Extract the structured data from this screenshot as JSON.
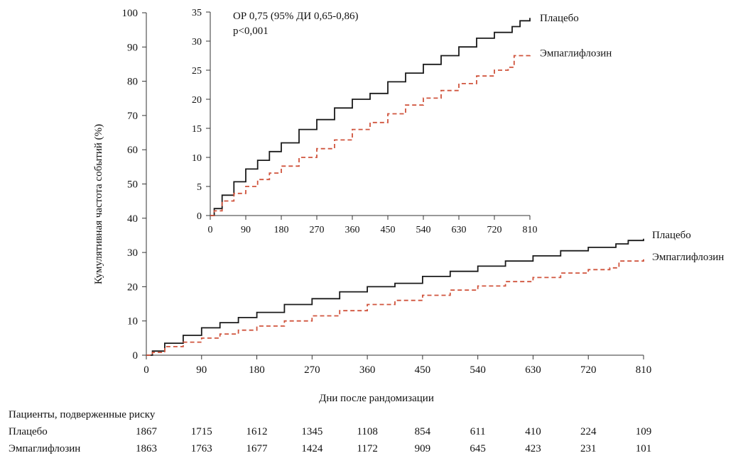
{
  "chart_data": [
    {
      "id": "main",
      "type": "line",
      "ylabel": "Кумулятивная частота событий (%)",
      "xlabel": "Дни после рандомизации",
      "ylim": [
        0,
        100
      ],
      "xlim": [
        0,
        810
      ],
      "y_ticks": [
        0,
        10,
        20,
        30,
        40,
        50,
        60,
        70,
        80,
        90,
        100
      ],
      "x_ticks": [
        0,
        90,
        180,
        270,
        360,
        450,
        540,
        630,
        720,
        810
      ],
      "series": [
        {
          "name": "Плацебо",
          "color": "#1a1a1a",
          "style": "solid",
          "x": [
            0,
            10,
            30,
            60,
            90,
            120,
            150,
            180,
            225,
            270,
            315,
            360,
            405,
            450,
            495,
            540,
            585,
            630,
            675,
            720,
            765,
            785,
            810
          ],
          "y": [
            0,
            1.2,
            3.5,
            5.8,
            8.0,
            9.5,
            11.0,
            12.5,
            14.8,
            16.5,
            18.5,
            20.0,
            21.0,
            23.0,
            24.5,
            26.0,
            27.5,
            29.0,
            30.5,
            31.5,
            32.5,
            33.5,
            34.0
          ]
        },
        {
          "name": "Эмпаглифлозин",
          "color": "#d0543d",
          "style": "dashed",
          "x": [
            0,
            10,
            30,
            60,
            90,
            120,
            150,
            180,
            225,
            270,
            315,
            360,
            405,
            450,
            495,
            540,
            585,
            630,
            675,
            720,
            755,
            770,
            810
          ],
          "y": [
            0,
            0.8,
            2.5,
            3.8,
            5.0,
            6.2,
            7.3,
            8.5,
            10.0,
            11.5,
            13.0,
            14.8,
            16.0,
            17.5,
            19.0,
            20.2,
            21.5,
            22.7,
            24.0,
            25.0,
            25.5,
            27.5,
            28.0
          ]
        }
      ],
      "legend": [
        "Плацебо",
        "Эмпаглифлозин"
      ],
      "legend_placement": "right, at line ends"
    },
    {
      "id": "inset",
      "type": "line",
      "ylim": [
        0,
        35
      ],
      "xlim": [
        0,
        810
      ],
      "y_ticks": [
        0,
        5,
        10,
        15,
        20,
        25,
        30,
        35
      ],
      "x_ticks": [
        0,
        90,
        180,
        270,
        360,
        450,
        540,
        630,
        720,
        810
      ],
      "annotation": [
        "ОР 0,75 (95% ДИ 0,65-0,86)",
        "p<0,001"
      ],
      "legend": [
        "Плацебо",
        "Эмпаглифлозин"
      ],
      "series_ref": "same data as main chart"
    }
  ],
  "risk_table": {
    "title": "Пациенты, подверженные риску",
    "rows": [
      {
        "label": "Плацебо",
        "values": [
          1867,
          1715,
          1612,
          1345,
          1108,
          854,
          611,
          410,
          224,
          109
        ]
      },
      {
        "label": "Эмпаглифлозин",
        "values": [
          1863,
          1763,
          1677,
          1424,
          1172,
          909,
          645,
          423,
          231,
          101
        ]
      }
    ]
  }
}
